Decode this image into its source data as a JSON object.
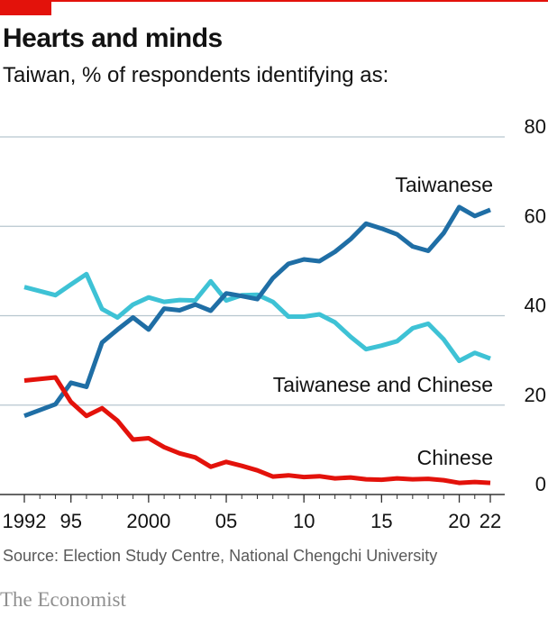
{
  "header": {
    "title": "Hearts and minds",
    "subtitle": "Taiwan, % of respondents identifying as:"
  },
  "footer": {
    "source": "Source: Election Study Centre, National Chengchi University",
    "brand": "The Economist"
  },
  "colors": {
    "accent": "#e3120b",
    "taiwanese": "#1f6ea5",
    "both": "#3ec2d5",
    "chinese": "#e3120b",
    "grid": "#b7c6cf",
    "axis": "#333333"
  },
  "chart_data": {
    "type": "line",
    "ylim": [
      0,
      80
    ],
    "xlim": [
      1992,
      2022
    ],
    "yticks": [
      0,
      20,
      40,
      60,
      80
    ],
    "xtick_labels": [
      {
        "x": 1992,
        "label": "1992"
      },
      {
        "x": 1995,
        "label": "95"
      },
      {
        "x": 2000,
        "label": "2000"
      },
      {
        "x": 2005,
        "label": "05"
      },
      {
        "x": 2010,
        "label": "10"
      },
      {
        "x": 2015,
        "label": "15"
      },
      {
        "x": 2020,
        "label": "20"
      },
      {
        "x": 2022,
        "label": "22"
      }
    ],
    "grid": true,
    "x": [
      1992,
      1994,
      1995,
      1996,
      1997,
      1998,
      1999,
      2000,
      2001,
      2002,
      2003,
      2004,
      2005,
      2006,
      2007,
      2008,
      2009,
      2010,
      2011,
      2012,
      2013,
      2014,
      2015,
      2016,
      2017,
      2018,
      2019,
      2020,
      2021,
      2022
    ],
    "series": [
      {
        "name": "Taiwanese",
        "key": "taiwanese",
        "values": [
          17.6,
          20.2,
          25.0,
          24.1,
          34.0,
          36.9,
          39.6,
          36.9,
          41.6,
          41.2,
          42.5,
          41.1,
          45.0,
          44.4,
          43.7,
          48.4,
          51.6,
          52.6,
          52.2,
          54.3,
          57.1,
          60.6,
          59.5,
          58.2,
          55.5,
          54.5,
          58.5,
          64.3,
          62.3,
          63.7
        ]
      },
      {
        "name": "Taiwanese and Chinese",
        "key": "both",
        "values": [
          46.4,
          44.6,
          47.0,
          49.3,
          41.5,
          39.6,
          42.5,
          44.1,
          43.1,
          43.5,
          43.4,
          47.7,
          43.4,
          44.6,
          44.7,
          43.1,
          39.8,
          39.8,
          40.3,
          38.5,
          35.3,
          32.5,
          33.3,
          34.3,
          37.2,
          38.2,
          34.7,
          29.9,
          31.7,
          30.4
        ]
      },
      {
        "name": "Chinese",
        "key": "chinese",
        "values": [
          25.5,
          26.2,
          20.7,
          17.6,
          19.3,
          16.5,
          12.3,
          12.6,
          10.6,
          9.2,
          8.3,
          6.2,
          7.3,
          6.4,
          5.4,
          4.0,
          4.3,
          3.9,
          4.1,
          3.6,
          3.8,
          3.4,
          3.3,
          3.6,
          3.4,
          3.5,
          3.2,
          2.6,
          2.8,
          2.6
        ]
      }
    ],
    "series_labels": [
      "Taiwanese",
      "Taiwanese and Chinese",
      "Chinese"
    ]
  }
}
